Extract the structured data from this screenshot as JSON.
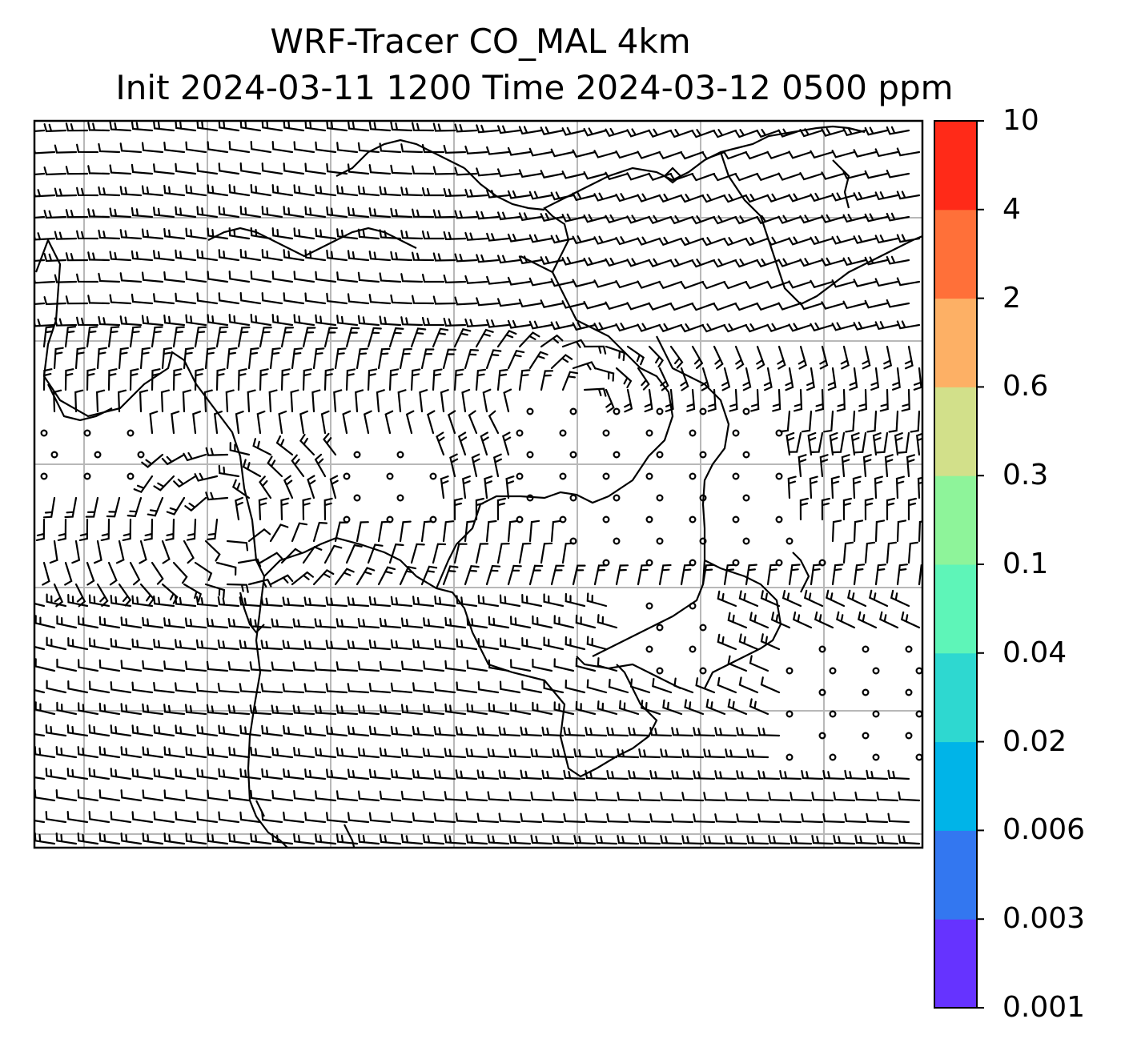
{
  "title_line1": "WRF-Tracer CO_MAL 4km",
  "title_line2": "Init 2024-03-11 1200 Time 2024-03-12 0500 ppm",
  "colorbar": {
    "levels": [
      "0.001",
      "0.003",
      "0.006",
      "0.02",
      "0.04",
      "0.1",
      "0.3",
      "0.6",
      "2",
      "4",
      "10"
    ],
    "colors": [
      "#6633ff",
      "#3377f0",
      "#00b4e8",
      "#2ed8d0",
      "#5ef5b8",
      "#8ef49a",
      "#d2e08a",
      "#fdb065",
      "#ff7039",
      "#ff2a18"
    ]
  },
  "styles": {
    "gridline_color": "#b8b8b8",
    "barb_color": "#000000",
    "coast_color": "#000000",
    "tracer_fill": "#3377f0",
    "tracer_edge": "#6633ff"
  }
}
